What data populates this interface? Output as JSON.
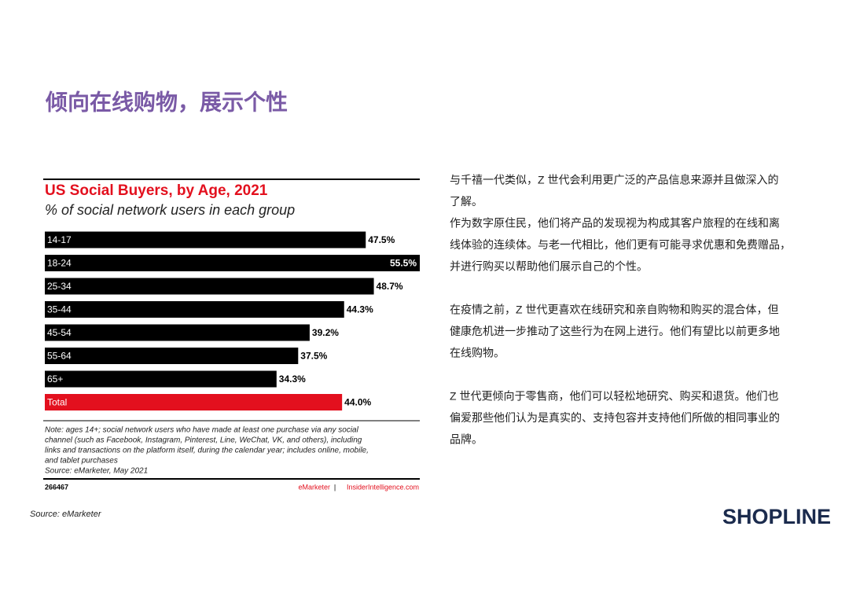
{
  "slide_title": "倾向在线购物，展示个性",
  "chart_data": {
    "type": "hbar",
    "title": "US Social Buyers, by Age, 2021",
    "subtitle": "% of social network users in each group",
    "categories": [
      "14-17",
      "18-24",
      "25-34",
      "35-44",
      "45-54",
      "55-64",
      "65+",
      "Total"
    ],
    "values": [
      47.5,
      55.5,
      48.7,
      44.3,
      39.2,
      37.5,
      34.3,
      44.0
    ],
    "value_labels": [
      "47.5%",
      "55.5%",
      "48.7%",
      "44.3%",
      "39.2%",
      "37.5%",
      "34.3%",
      "44.0%"
    ],
    "colors": [
      "#000000",
      "#000000",
      "#000000",
      "#000000",
      "#000000",
      "#000000",
      "#000000",
      "#e3101e"
    ],
    "note": [
      "Note: ages 14+; social network users who have made at least one purchase via any social",
      "channel (such as Facebook, Instagram, Pinterest, Line, WeChat, VK, and others), including",
      "links and transactions on the platform itself, during the calendar year; includes online, mobile,",
      "and tablet purchases",
      "Source: eMarketer, May 2021"
    ],
    "chart_id": "266467",
    "brand_left": "eMarketer",
    "brand_sep": "|",
    "brand_right": "InsiderIntelligence.com"
  },
  "source": "Source: eMarketer",
  "paragraphs": [
    [
      "与千禧一代类似，Z 世代会利用更广泛的产品信息来源并且做深入的",
      "了解。",
      "作为数字原住民，他们将产品的发现视为构成其客户旅程的在线和离",
      "线体验的连续体。与老一代相比，他们更有可能寻求优惠和免费赠品，",
      "并进行购买以帮助他们展示自己的个性。"
    ],
    [
      "在疫情之前，Z 世代更喜欢在线研究和亲自购物和购买的混合体，但",
      "健康危机进一步推动了这些行为在网上进行。他们有望比以前更多地",
      "在线购物。"
    ],
    [
      "Z 世代更倾向于零售商，他们可以轻松地研究、购买和退货。他们也",
      "偏爱那些他们认为是真实的、支持包容并支持他们所做的相同事业的",
      "品牌。"
    ]
  ],
  "logo": "SHOPLINE"
}
